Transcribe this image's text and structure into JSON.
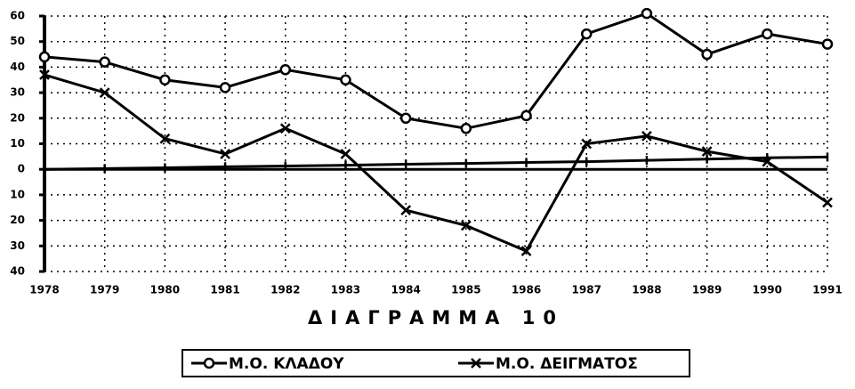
{
  "chart_data": {
    "type": "line",
    "title": "ΔΙΑΓΡΑΜΜΑ 10",
    "categories": [
      "1978",
      "1979",
      "1980",
      "1981",
      "1982",
      "1983",
      "1984",
      "1985",
      "1986",
      "1987",
      "1988",
      "1989",
      "1990",
      "1991"
    ],
    "series": [
      {
        "name": "Μ.Ο. ΚΛΑΔΟΥ",
        "color": "#000000",
        "marker": "circle",
        "values": [
          44,
          42,
          35,
          32,
          39,
          35,
          20,
          16,
          21,
          53,
          61,
          45,
          53,
          49
        ]
      },
      {
        "name": "Μ.Ο. ΔΕΙΓΜΑΤΟΣ",
        "color": "#000000",
        "marker": "x",
        "values": [
          37,
          30,
          12,
          6,
          16,
          6,
          -16,
          -22,
          -32,
          10,
          13,
          7,
          3,
          -13
        ]
      },
      {
        "color": "#000000",
        "marker": "tick",
        "values": [
          0,
          0.3,
          0.6,
          1,
          1.3,
          1.6,
          2,
          2.3,
          2.7,
          3,
          3.5,
          4,
          4.5,
          4.8
        ]
      }
    ],
    "ylim": [
      -40,
      60
    ],
    "yticks": [
      60,
      50,
      40,
      30,
      20,
      10,
      0,
      {
        "value": -10,
        "label": "10"
      },
      {
        "value": -20,
        "label": "20"
      },
      {
        "value": -30,
        "label": "30"
      },
      {
        "value": -40,
        "label": "40"
      }
    ],
    "grid": true,
    "grid_style": "dotted",
    "legend": "bottom"
  }
}
